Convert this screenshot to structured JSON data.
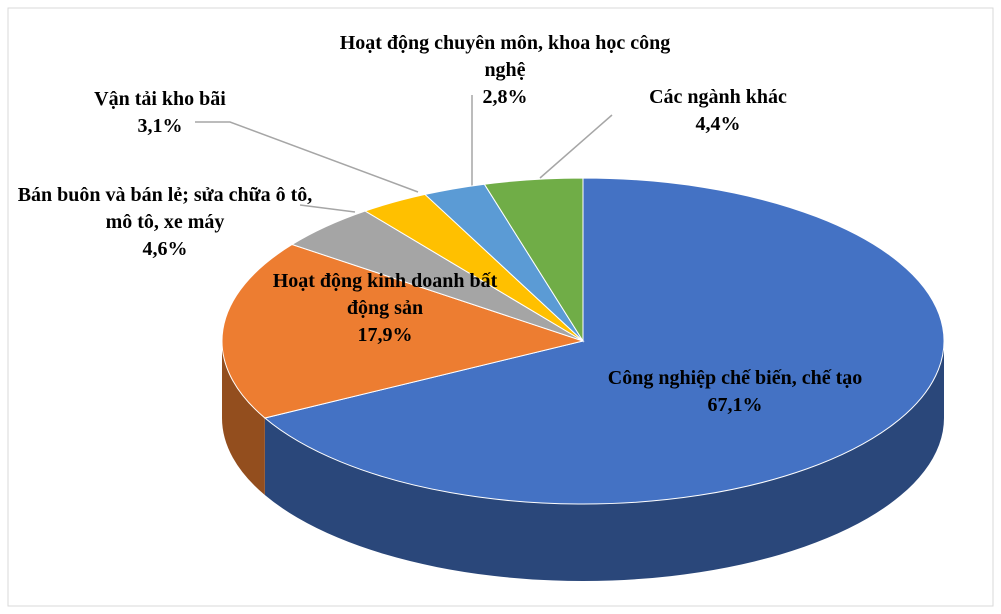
{
  "chart_data": {
    "type": "pie3d",
    "categories": [
      "Công nghiệp chế biến, chế tạo",
      "Hoạt động kinh doanh bất động sản",
      "Bán buôn và bán lẻ; sửa chữa ô tô, mô tô, xe máy",
      "Vận tải kho bãi",
      "Hoạt động chuyên môn, khoa học công nghệ",
      "Các ngành khác"
    ],
    "values": [
      67.1,
      17.9,
      4.6,
      3.1,
      2.8,
      4.4
    ],
    "value_labels": [
      "67,1%",
      "17,9%",
      "4,6%",
      "3,1%",
      "2,8%",
      "4,4%"
    ],
    "colors": [
      "#4472c4",
      "#ed7d31",
      "#a5a5a5",
      "#ffc000",
      "#5b9bd5",
      "#70ad47"
    ]
  }
}
